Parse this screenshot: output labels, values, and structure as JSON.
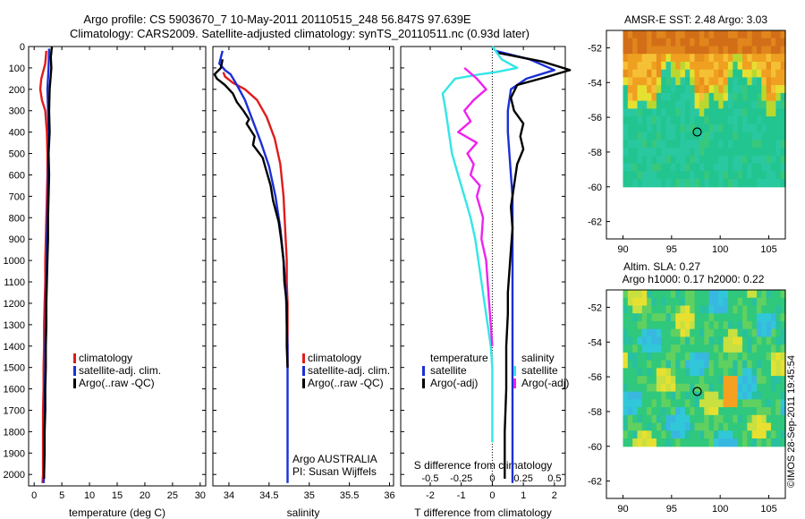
{
  "title_line1": "Argo profile: CS 5903670_7 10-May-2011 20110515_248 56.847S 97.639E",
  "title_line2": "Climatology: CARS2009. Satellite-adjusted climatology: synTS_20110511.nc (0.93d later)",
  "watermark": "©IMOS 28-Sep-2011 19:45:54",
  "colors": {
    "climatology": "#e11b1b",
    "satellite": "#1b2fd6",
    "argo": "#000000",
    "satellite_salinity": "#33e6e6",
    "argo_salinity": "#ee22ee"
  },
  "chart_data": [
    {
      "id": "temperature",
      "type": "line",
      "xlabel": "temperature (deg C)",
      "ylabel": "",
      "xlim": [
        -1,
        31
      ],
      "ylim": [
        2060,
        0
      ],
      "xticks": [
        0,
        5,
        10,
        15,
        20,
        25,
        30
      ],
      "yticks": [
        0,
        100,
        200,
        300,
        400,
        500,
        600,
        700,
        800,
        900,
        1000,
        1100,
        1200,
        1300,
        1400,
        1500,
        1600,
        1700,
        1800,
        1900,
        2000
      ],
      "legend": [
        "climatology",
        "satellite-adj. clim.",
        "Argo(..raw -QC)"
      ],
      "series": [
        {
          "name": "climatology",
          "color_key": "climatology",
          "x": [
            2.2,
            2.0,
            1.3,
            1.1,
            1.4,
            2.0,
            2.3,
            2.4,
            2.4,
            2.3,
            2.2,
            2.1,
            2.0,
            2.0,
            1.9,
            1.8,
            1.8,
            1.7,
            1.7,
            1.6,
            1.6,
            1.6,
            1.6,
            1.5
          ],
          "y": [
            20,
            80,
            150,
            200,
            250,
            300,
            400,
            500,
            600,
            700,
            800,
            900,
            1000,
            1100,
            1200,
            1300,
            1400,
            1500,
            1600,
            1700,
            1800,
            1900,
            2000,
            2040
          ]
        },
        {
          "name": "satellite-adj. clim.",
          "color_key": "satellite",
          "x": [
            2.7,
            2.6,
            2.4,
            2.5,
            2.6,
            2.6,
            2.5,
            2.5,
            2.4,
            2.3,
            2.3,
            2.2,
            2.1,
            2.1,
            2.0,
            2.0,
            1.9,
            1.9,
            1.8,
            1.8,
            1.8,
            1.7
          ],
          "y": [
            10,
            100,
            200,
            300,
            400,
            500,
            600,
            700,
            800,
            900,
            1000,
            1100,
            1200,
            1300,
            1400,
            1500,
            1600,
            1700,
            1800,
            1900,
            2000,
            2040
          ]
        },
        {
          "name": "Argo(..raw -QC)",
          "color_key": "argo",
          "x": [
            3.2,
            3.0,
            3.1,
            2.8,
            2.7,
            2.8,
            2.6,
            2.7,
            2.6,
            2.5,
            2.5,
            2.4,
            2.3,
            2.2,
            2.2,
            2.1,
            2.1,
            2.0,
            2.0,
            1.9,
            1.9,
            1.8,
            1.8
          ],
          "y": [
            0,
            50,
            100,
            200,
            300,
            400,
            500,
            600,
            700,
            800,
            900,
            1000,
            1100,
            1200,
            1300,
            1400,
            1500,
            1600,
            1700,
            1800,
            1900,
            2000,
            2020
          ]
        }
      ]
    },
    {
      "id": "salinity",
      "type": "line",
      "xlabel": "salinity",
      "ylabel": "",
      "xlim": [
        33.8,
        36.05
      ],
      "ylim": [
        2060,
        0
      ],
      "xticks": [
        34,
        34.5,
        35,
        35.5,
        36
      ],
      "legend": [
        "climatology",
        "satellite-adj. clim.",
        "Argo(..raw -QC)"
      ],
      "annotations": [
        "Argo AUSTRALIA",
        "PI: Susan Wijffels"
      ],
      "series": [
        {
          "name": "climatology",
          "color_key": "climatology",
          "x": [
            33.93,
            33.95,
            34.05,
            34.2,
            34.35,
            34.47,
            34.57,
            34.64,
            34.68,
            34.7,
            34.72,
            34.72,
            34.73,
            34.73,
            34.73,
            34.73,
            34.73
          ],
          "y": [
            120,
            140,
            170,
            200,
            250,
            330,
            430,
            550,
            700,
            850,
            1000,
            1100,
            1200,
            1250,
            1300,
            1400,
            1500
          ]
        },
        {
          "name": "satellite-adj. clim.",
          "color_key": "satellite",
          "x": [
            33.92,
            33.88,
            33.95,
            34.02,
            34.1,
            34.2,
            34.3,
            34.4,
            34.5,
            34.58,
            34.64,
            34.68,
            34.71,
            34.72,
            34.73,
            34.73,
            34.73,
            34.73,
            34.73,
            34.73
          ],
          "y": [
            20,
            80,
            110,
            130,
            180,
            250,
            350,
            450,
            560,
            700,
            850,
            1000,
            1150,
            1300,
            1400,
            1500,
            1600,
            1700,
            1800,
            2040
          ]
        },
        {
          "name": "Argo(..raw -QC)",
          "color_key": "argo",
          "x": [
            33.92,
            33.9,
            33.82,
            33.85,
            33.95,
            34.05,
            34.1,
            34.18,
            34.25,
            34.22,
            34.32,
            34.3,
            34.42,
            34.45,
            34.52,
            34.55,
            34.62,
            34.65,
            34.68,
            34.69,
            34.72,
            34.72,
            34.72,
            34.73
          ],
          "y": [
            60,
            100,
            130,
            150,
            180,
            220,
            260,
            300,
            340,
            360,
            420,
            460,
            520,
            560,
            650,
            720,
            820,
            900,
            1000,
            1100,
            1200,
            1300,
            1400,
            1500
          ]
        }
      ]
    },
    {
      "id": "differences",
      "type": "line",
      "xlabel": "T difference from climatology",
      "x2label": "S difference from climatology",
      "ylabel": "",
      "xlim": [
        -2.95,
        2.35
      ],
      "ylim": [
        2060,
        0
      ],
      "xticks": [
        -2,
        -1,
        0,
        1,
        2
      ],
      "x2ticks": [
        -0.5,
        -0.25,
        0,
        0.25,
        0.5
      ],
      "x2scale": 4,
      "legend_headers": [
        "temperature",
        "salinity"
      ],
      "legend": [
        "satellite",
        "Argo(-adj)",
        "satellite",
        "Argo(-adj)"
      ],
      "series": [
        {
          "name": "satellite",
          "color_key": "satellite",
          "x": [
            0.1,
            1.2,
            2.0,
            1.1,
            0.6,
            0.5,
            0.5,
            0.55,
            0.6,
            0.65,
            0.65,
            0.65,
            0.65,
            0.65,
            0.65,
            0.65,
            0.65,
            0.65,
            0.65,
            0.65,
            0.65,
            0.65,
            0.65
          ],
          "y": [
            20,
            60,
            110,
            150,
            200,
            300,
            400,
            500,
            600,
            700,
            800,
            900,
            1000,
            1100,
            1200,
            1300,
            1400,
            1500,
            1600,
            1700,
            1800,
            1900,
            2040
          ]
        },
        {
          "name": "Argo(-adj)",
          "color_key": "argo",
          "x": [
            0.2,
            1.6,
            2.5,
            1.8,
            0.8,
            0.6,
            0.7,
            1.0,
            0.9,
            1.0,
            0.8,
            0.7,
            0.6,
            0.65,
            0.6,
            0.55,
            0.5,
            0.5,
            0.45,
            0.45,
            0.4,
            0.4,
            0.4
          ],
          "y": [
            30,
            70,
            110,
            140,
            180,
            240,
            300,
            360,
            420,
            480,
            550,
            650,
            750,
            850,
            950,
            1050,
            1150,
            1250,
            1400,
            1600,
            1800,
            1900,
            2020
          ]
        },
        {
          "name": "satellite",
          "color_key": "satellite_salinity",
          "x": [
            0.0,
            0.3,
            0.8,
            0.1,
            -0.4,
            -1.2,
            -1.6,
            -1.5,
            -1.4,
            -1.3,
            -1.1,
            -0.9,
            -0.7,
            -0.55,
            -0.45,
            -0.35,
            -0.25,
            -0.15,
            -0.05,
            0.0,
            0.0,
            0.0
          ],
          "y": [
            0,
            60,
            100,
            120,
            130,
            150,
            220,
            300,
            400,
            500,
            600,
            700,
            800,
            900,
            1000,
            1100,
            1200,
            1300,
            1400,
            1500,
            1700,
            1850
          ]
        },
        {
          "name": "Argo(-adj)",
          "color_key": "argo_salinity",
          "x": [
            -0.9,
            -0.5,
            -0.2,
            -0.6,
            -0.9,
            -0.7,
            -1.1,
            -0.5,
            -0.8,
            -0.6,
            -0.7,
            -0.4,
            -0.5,
            -0.3,
            -0.35,
            -0.2,
            -0.15,
            -0.1,
            -0.05,
            0.0
          ],
          "y": [
            100,
            150,
            200,
            250,
            300,
            350,
            400,
            450,
            500,
            550,
            600,
            650,
            700,
            800,
            900,
            1000,
            1100,
            1200,
            1300,
            1400
          ]
        }
      ]
    },
    {
      "id": "sst_map",
      "type": "heatmap",
      "title": "AMSR-E SST: 2.48 Argo: 3.03",
      "xticks": [
        90,
        95,
        100,
        105
      ],
      "yticks": [
        -52,
        -54,
        -56,
        -58,
        -60,
        -62
      ],
      "xlim": [
        88.3,
        106.7
      ],
      "ylim": [
        -63,
        -51
      ],
      "argo_position": {
        "lon": 97.639,
        "lat": -56.847
      }
    },
    {
      "id": "sla_map",
      "type": "heatmap",
      "title": "Altim. SLA: 0.27",
      "subtitle": "Argo h1000: 0.17 h2000: 0.22",
      "xticks": [
        90,
        95,
        100,
        105
      ],
      "yticks": [
        -52,
        -54,
        -56,
        -58,
        -60,
        -62
      ],
      "xlim": [
        88.3,
        106.7
      ],
      "ylim": [
        -63,
        -51
      ],
      "argo_position": {
        "lon": 97.639,
        "lat": -56.847
      }
    }
  ]
}
